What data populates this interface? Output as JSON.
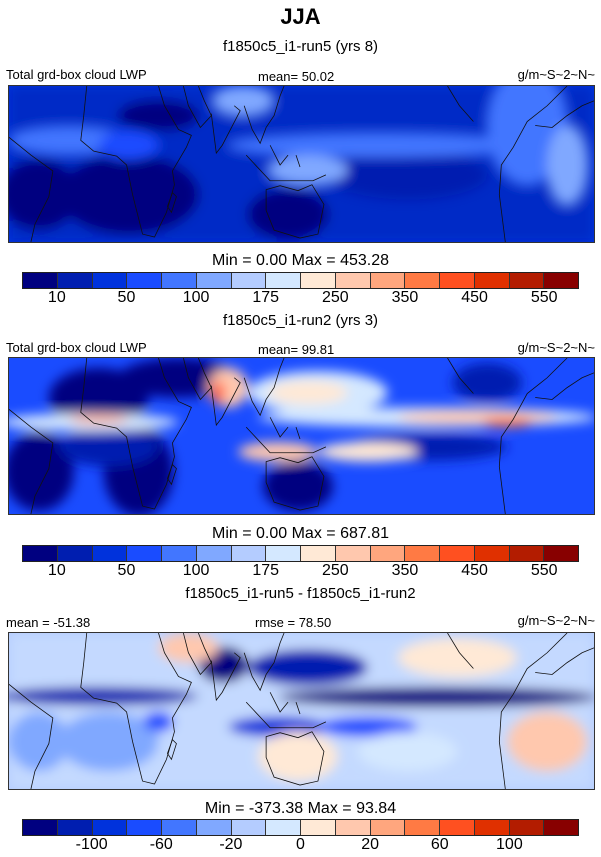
{
  "title": "JJA",
  "colors": [
    "#000080",
    "#001eb0",
    "#0032dc",
    "#1a4cff",
    "#4276ff",
    "#80a8ff",
    "#b4ccff",
    "#d4e8ff",
    "#ffe9d6",
    "#ffc8ae",
    "#ffa67e",
    "#ff7a44",
    "#ff5020",
    "#e03000",
    "#b31c00",
    "#880000"
  ],
  "panels": [
    {
      "subtitle": "f1850c5_i1-run5 (yrs 8)",
      "left_label": "Total grd-box cloud LWP",
      "center_label": "mean=  50.02",
      "right_label": "g/m~S~2~N~",
      "colorbar_title": "Min =   0.00 Max = 453.28",
      "colorbar_levels": [
        "10",
        null,
        "50",
        null,
        "100",
        null,
        "175",
        null,
        "250",
        null,
        "350",
        null,
        "450",
        null,
        "550"
      ]
    },
    {
      "subtitle": "f1850c5_i1-run2 (yrs 3)",
      "left_label": "Total grd-box cloud LWP",
      "center_label": "mean=  99.81",
      "right_label": "g/m~S~2~N~",
      "colorbar_title": "Min =   0.00 Max = 687.81",
      "colorbar_levels": [
        "10",
        null,
        "50",
        null,
        "100",
        null,
        "175",
        null,
        "250",
        null,
        "350",
        null,
        "450",
        null,
        "550"
      ]
    },
    {
      "subtitle": "f1850c5_i1-run5 - f1850c5_i1-run2",
      "left_label": "mean = -51.38",
      "center_label": "rmse =  78.50",
      "right_label": "g/m~S~2~N~",
      "colorbar_title": "Min = -373.38 Max =  93.84",
      "colorbar_levels": [
        null,
        "-100",
        null,
        "-60",
        null,
        "-20",
        null,
        "0",
        null,
        "20",
        null,
        "60",
        null,
        "100",
        null
      ]
    }
  ]
}
